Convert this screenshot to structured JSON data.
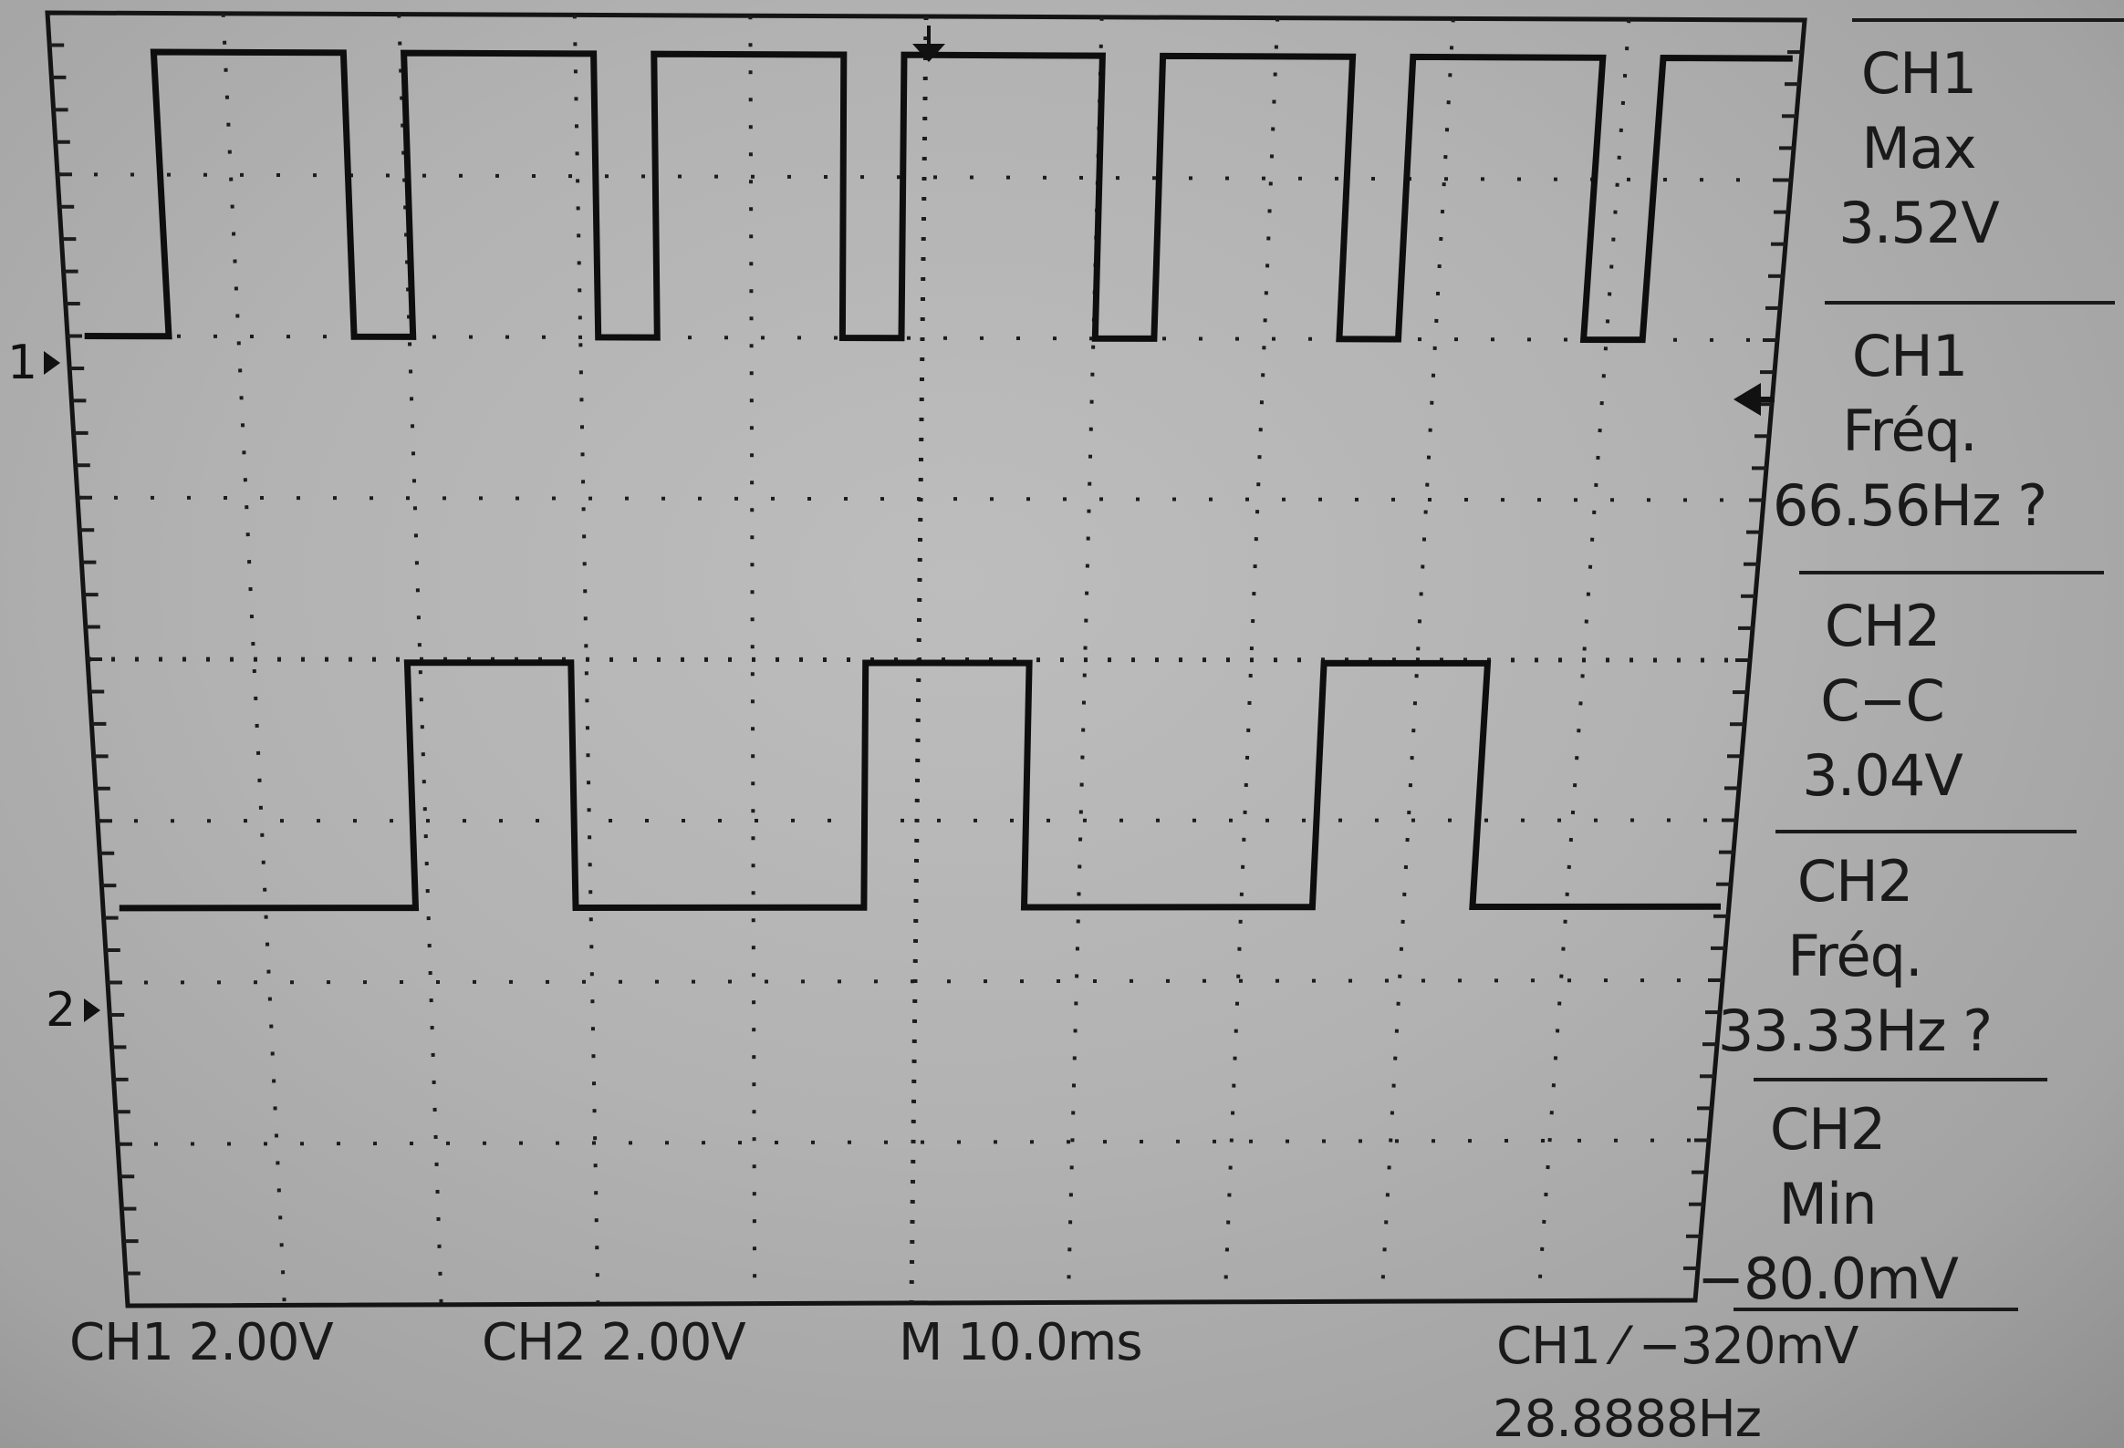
{
  "markers": {
    "ch1": "1",
    "ch2": "2"
  },
  "measurements": [
    {
      "channel": "CH1",
      "type": "Max",
      "value": "3.52V"
    },
    {
      "channel": "CH1",
      "type": "Fréq.",
      "value": "66.56Hz ?"
    },
    {
      "channel": "CH2",
      "type": "C−C",
      "value": "3.04V"
    },
    {
      "channel": "CH2",
      "type": "Fréq.",
      "value": "33.33Hz ?"
    },
    {
      "channel": "CH2",
      "type": "Min",
      "value": "−80.0mV"
    }
  ],
  "status": {
    "ch1_scale": "CH1  2.00V",
    "ch2_scale": "CH2  2.00V",
    "timebase": "M 10.0ms",
    "trigger": "CH1 ⁄ −320mV",
    "trigger_freq": "28.8888Hz"
  },
  "chart_data": {
    "type": "line",
    "title": "",
    "xlabel": "",
    "ylabel": "",
    "x_unit": "ms",
    "x_per_div": 10,
    "y_per_div": 2.0,
    "y_unit": "V",
    "grid": true,
    "series": [
      {
        "name": "CH1",
        "kind": "pulse-train",
        "high_V": 3.52,
        "low_V": 0,
        "frequency_Hz": 66.56,
        "transitions_ms": [
          [
            0,
            0
          ],
          [
            5.0,
            0
          ],
          [
            5.0,
            3.52
          ],
          [
            16.0,
            3.52
          ],
          [
            16.0,
            0
          ],
          [
            19.5,
            0
          ],
          [
            19.5,
            3.52
          ],
          [
            30.5,
            3.52
          ],
          [
            30.5,
            0
          ],
          [
            34.0,
            0
          ],
          [
            34.0,
            3.52
          ],
          [
            45.0,
            3.52
          ],
          [
            45.0,
            0
          ],
          [
            48.5,
            0
          ],
          [
            48.5,
            3.52
          ],
          [
            60.0,
            3.52
          ],
          [
            60.0,
            0
          ],
          [
            63.5,
            0
          ],
          [
            63.5,
            3.52
          ],
          [
            74.5,
            3.52
          ],
          [
            74.5,
            0
          ],
          [
            78.0,
            0
          ],
          [
            78.0,
            3.52
          ],
          [
            89.0,
            3.52
          ],
          [
            89.0,
            0
          ],
          [
            92.5,
            0
          ],
          [
            92.5,
            3.52
          ],
          [
            100,
            3.52
          ]
        ]
      },
      {
        "name": "CH2",
        "kind": "square",
        "high_V": 2.96,
        "low_V": -0.08,
        "frequency_Hz": 33.33,
        "transitions_ms": [
          [
            0,
            -0.08
          ],
          [
            18.5,
            -0.08
          ],
          [
            18.5,
            2.96
          ],
          [
            28.5,
            2.96
          ],
          [
            28.5,
            -0.08
          ],
          [
            46.5,
            -0.08
          ],
          [
            46.5,
            2.96
          ],
          [
            56.5,
            2.96
          ],
          [
            56.5,
            -0.08
          ],
          [
            74.5,
            -0.08
          ],
          [
            74.5,
            2.96
          ],
          [
            84.5,
            2.96
          ],
          [
            84.5,
            -0.08
          ],
          [
            100,
            -0.08
          ]
        ]
      }
    ]
  }
}
